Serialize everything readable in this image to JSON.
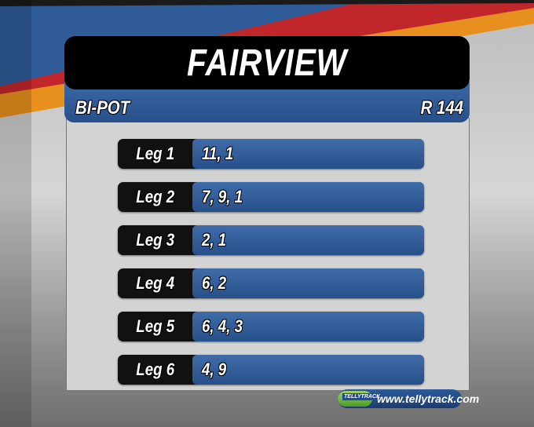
{
  "header": {
    "title": "FAIRVIEW",
    "bet_type": "BI-POT",
    "pool": "R 144"
  },
  "legs": [
    {
      "label": "Leg 1",
      "selections": "11, 1"
    },
    {
      "label": "Leg 2",
      "selections": "7, 9, 1"
    },
    {
      "label": "Leg 3",
      "selections": "2, 1"
    },
    {
      "label": "Leg 4",
      "selections": "6, 2"
    },
    {
      "label": "Leg 5",
      "selections": "6, 4, 3"
    },
    {
      "label": "Leg 6",
      "selections": "4, 9"
    }
  ],
  "branding": {
    "logo_text": "TELLYTRACK",
    "url": "www.tellytrack.com"
  },
  "colors": {
    "accent_blue": "#2f5c98",
    "header_black": "#000000",
    "stripe_red": "#c0262a",
    "stripe_orange": "#e8901e"
  }
}
